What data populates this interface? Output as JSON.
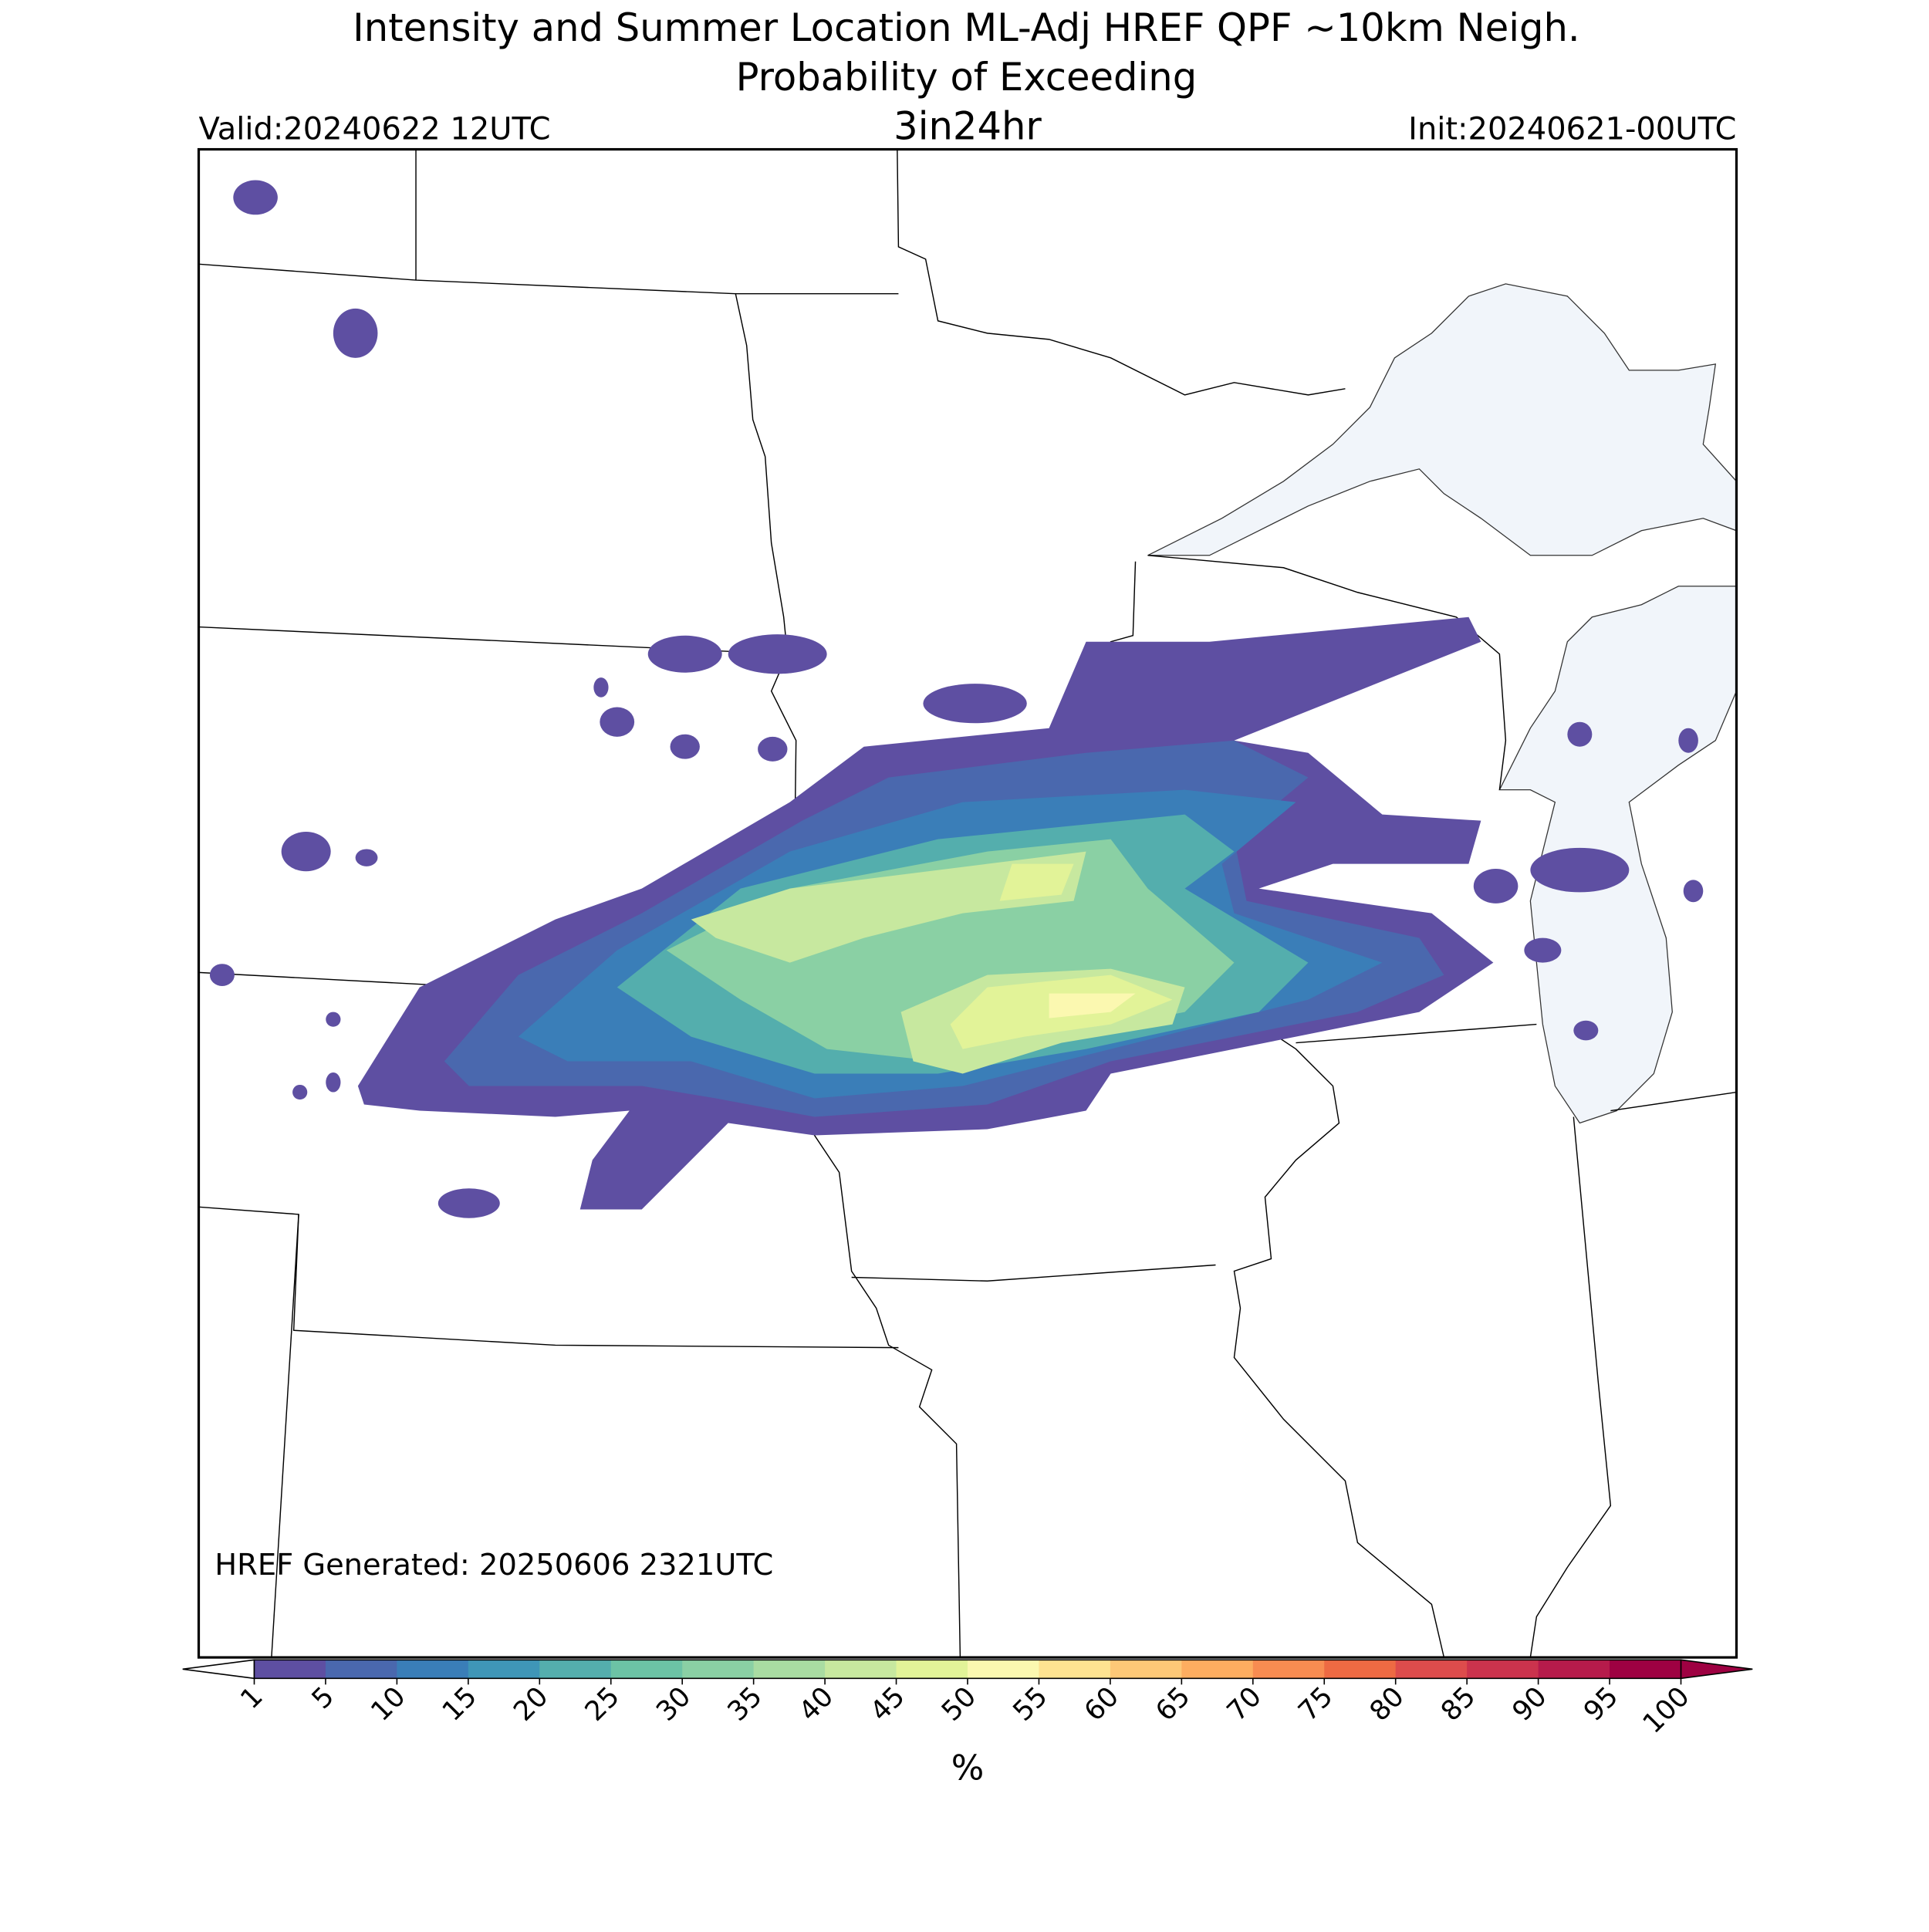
{
  "header": {
    "title": "Intensity and Summer Location ML-Adj HREF QPF ~10km Neigh.",
    "subtitle": "Probability of Exceeding",
    "threshold": "3in24hr",
    "valid": "Valid:20240622 12UTC",
    "init": "Init:20240621-00UTC"
  },
  "footer": {
    "generated": "HREF Generated: 20250606 2321UTC"
  },
  "colorbar": {
    "ticks": [
      1,
      5,
      10,
      15,
      20,
      25,
      30,
      35,
      40,
      45,
      50,
      55,
      60,
      65,
      70,
      75,
      80,
      85,
      90,
      95,
      100
    ],
    "colors": [
      "#5e4fa2",
      "#4a68ae",
      "#3a7eb8",
      "#3f96b7",
      "#54aead",
      "#6cc3a5",
      "#8ad0a4",
      "#a9dca2",
      "#c7e89f",
      "#e2f398",
      "#fbf8b0",
      "#fee391",
      "#fdc877",
      "#fdad60",
      "#f88c51",
      "#ee6a43",
      "#dd4c4c",
      "#cb334d",
      "#b61b4b",
      "#9e0142"
    ],
    "over_color": "#9e0142",
    "label": "%"
  }
}
